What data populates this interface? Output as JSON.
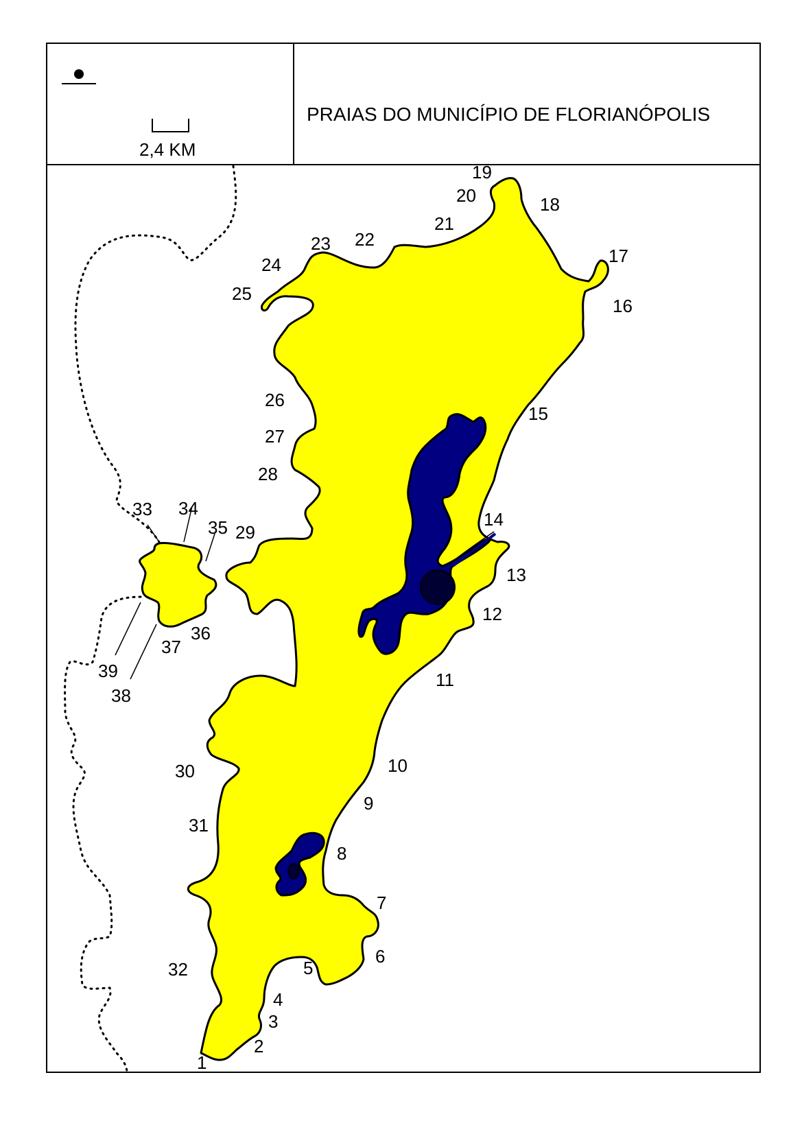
{
  "map": {
    "title": "PRAIAS DO MUNICÍPIO DE FLORIANÓPOLIS",
    "scale_label": "2,4 KM",
    "colors": {
      "land": "#ffff00",
      "lagoon": "#000080",
      "lagoon_center": "#000033",
      "outline": "#000000",
      "background": "#ffffff"
    },
    "icons": [
      "north-point-icon",
      "scale-bar-icon"
    ],
    "beaches": [
      "1",
      "2",
      "3",
      "4",
      "5",
      "6",
      "7",
      "8",
      "9",
      "10",
      "11",
      "12",
      "13",
      "14",
      "15",
      "16",
      "17",
      "18",
      "19",
      "20",
      "21",
      "22",
      "23",
      "24",
      "25",
      "26",
      "27",
      "28",
      "29",
      "30",
      "31",
      "32",
      "33",
      "34",
      "35",
      "36",
      "37",
      "38",
      "39"
    ]
  }
}
